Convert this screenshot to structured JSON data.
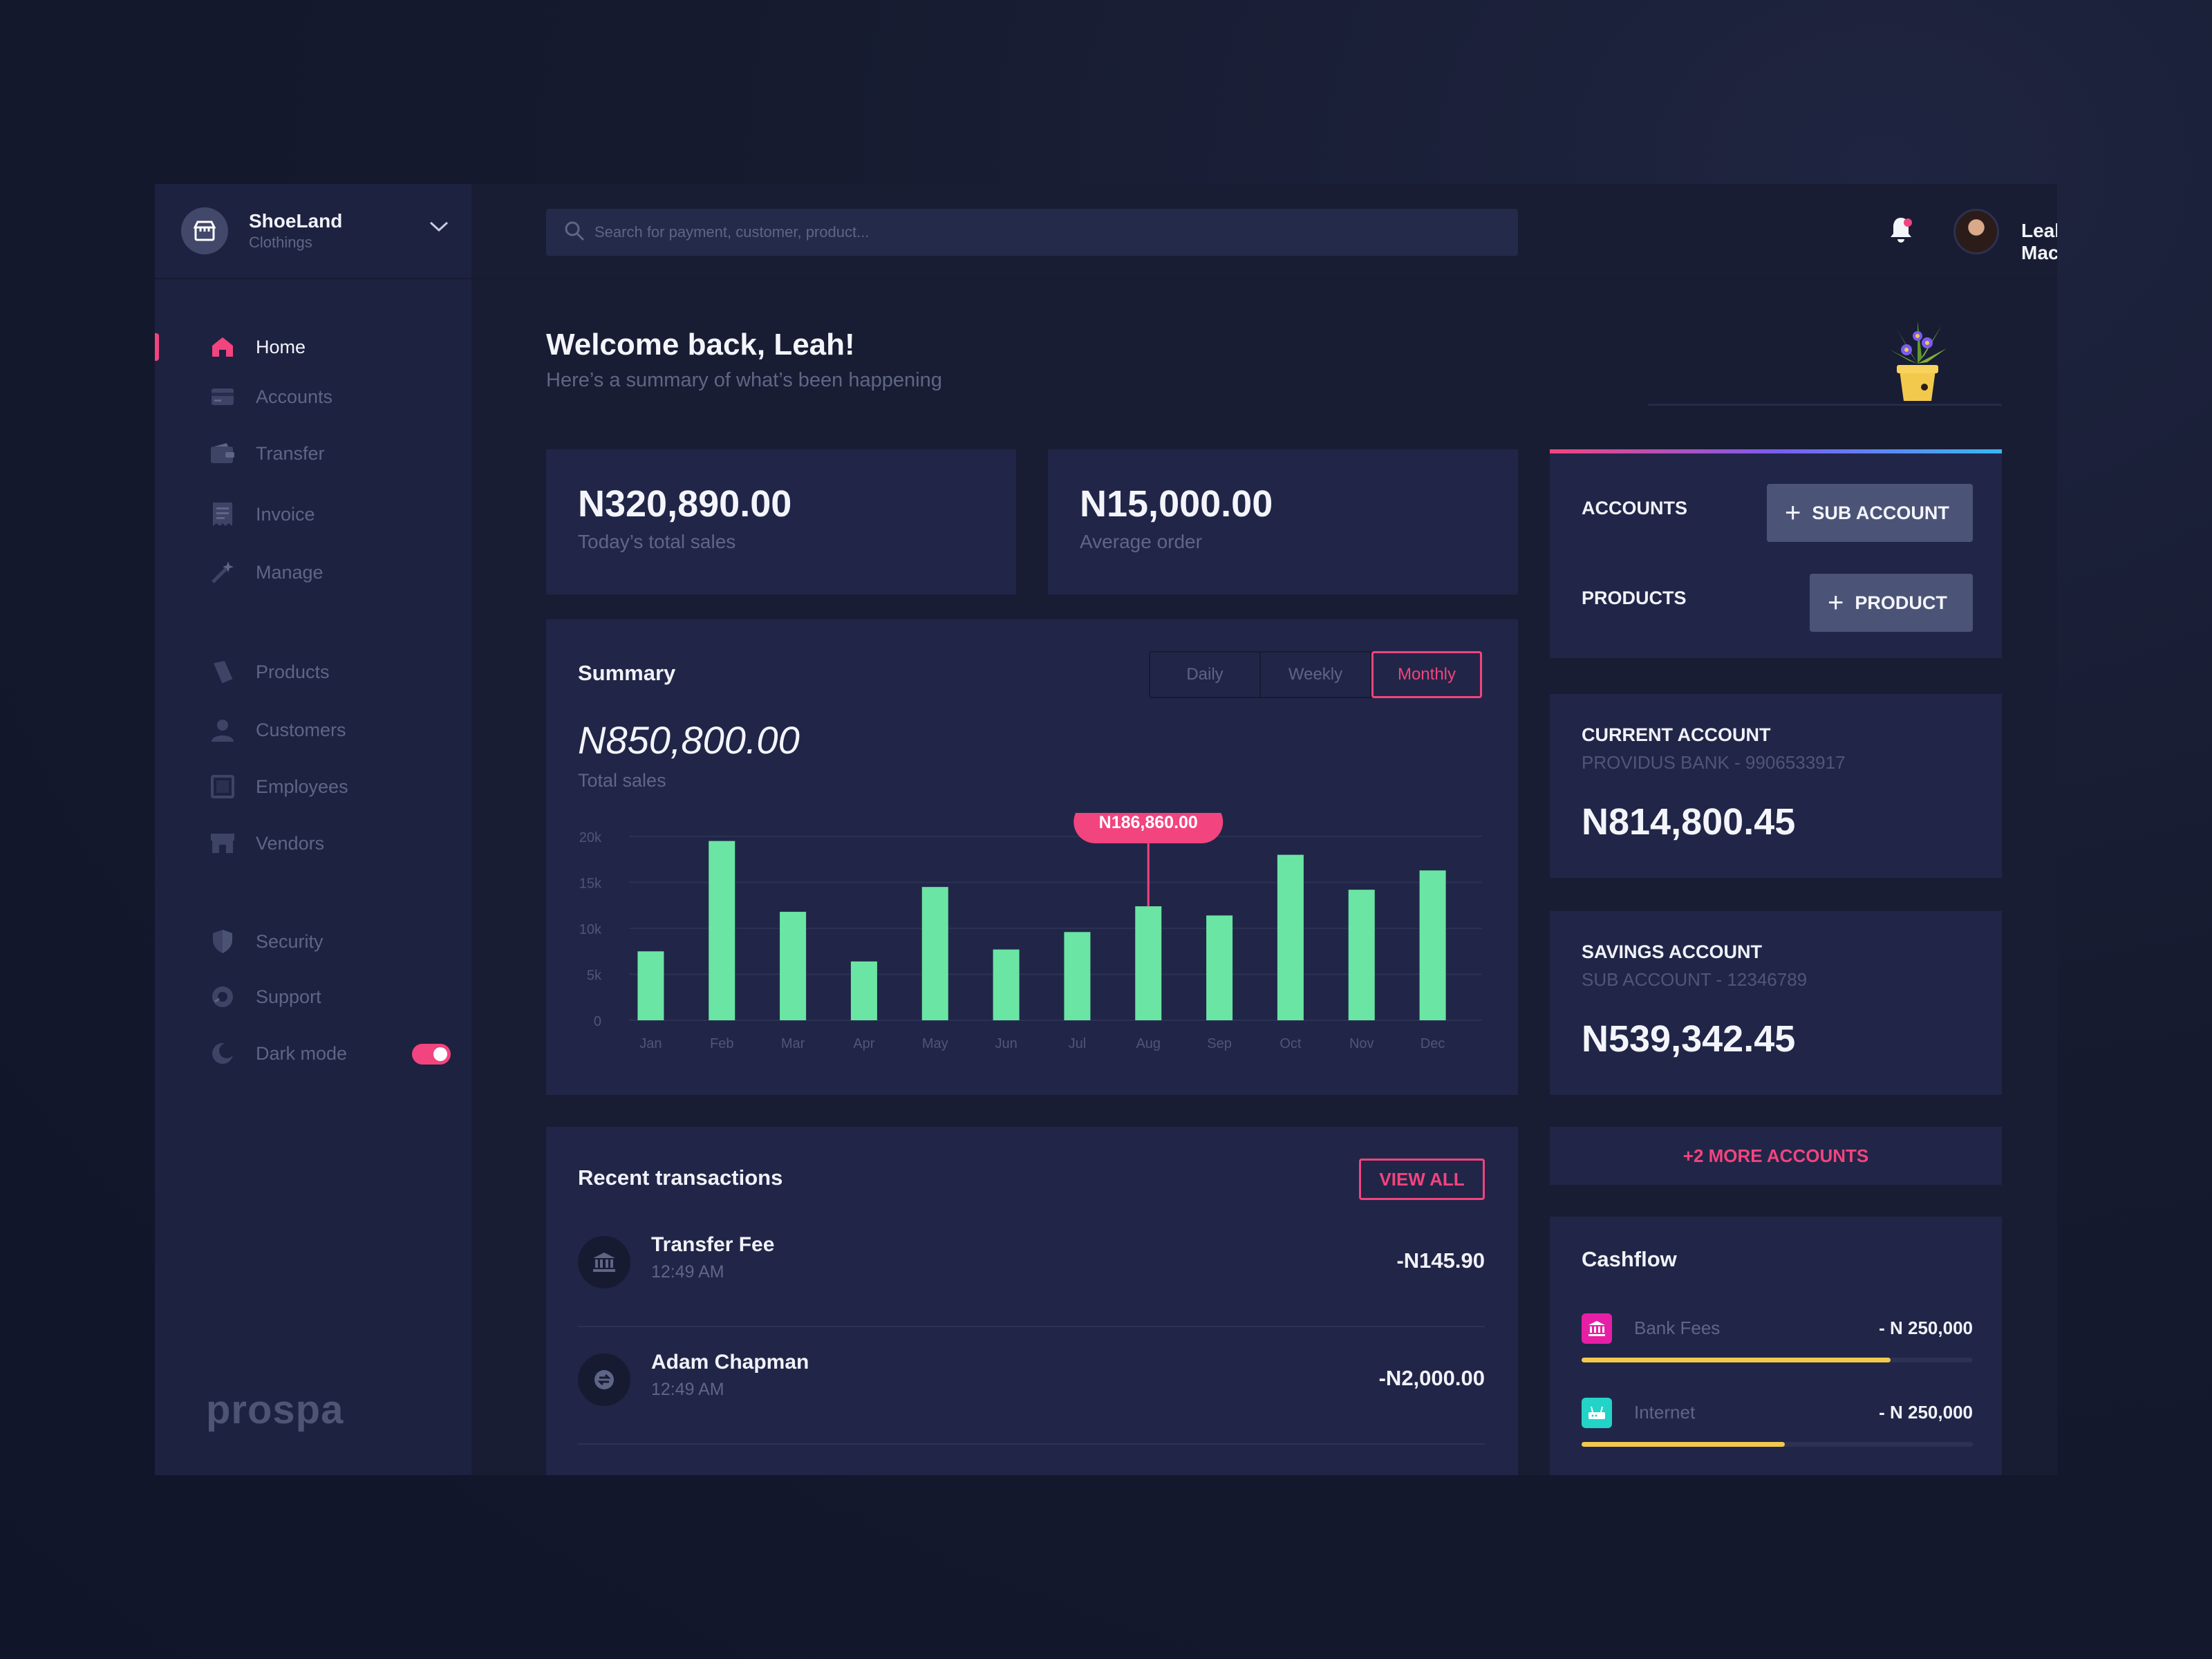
{
  "brand": {
    "name": "ShoeLand",
    "subtitle": "Clothings"
  },
  "search": {
    "placeholder": "Search for payment, customer, product..."
  },
  "user": {
    "name": "Leah Macharia"
  },
  "sidebar": {
    "items": [
      {
        "label": "Home",
        "icon": "home-icon"
      },
      {
        "label": "Accounts",
        "icon": "card-icon"
      },
      {
        "label": "Transfer",
        "icon": "wallet-icon"
      },
      {
        "label": "Invoice",
        "icon": "receipt-icon"
      },
      {
        "label": "Manage",
        "icon": "wand-icon"
      },
      {
        "label": "Products",
        "icon": "tag-icon"
      },
      {
        "label": "Customers",
        "icon": "person-icon"
      },
      {
        "label": "Employees",
        "icon": "badge-icon"
      },
      {
        "label": "Vendors",
        "icon": "store-icon"
      },
      {
        "label": "Security",
        "icon": "shield-icon"
      },
      {
        "label": "Support",
        "icon": "headset-icon"
      },
      {
        "label": "Dark mode",
        "icon": "moon-icon"
      }
    ],
    "dark_mode_on": true,
    "logo": "prospa"
  },
  "welcome": {
    "title": "Welcome back, Leah!",
    "subtitle": "Here’s a summary of what’s been happening"
  },
  "stats": [
    {
      "value": "N320,890.00",
      "label": "Today’s total sales"
    },
    {
      "value": "N15,000.00",
      "label": "Average order"
    }
  ],
  "summary": {
    "title": "Summary",
    "periods": [
      "Daily",
      "Weekly",
      "Monthly"
    ],
    "selected_period": "Monthly",
    "total": "N850,800.00",
    "total_label": "Total sales",
    "tooltip": "N186,860.00"
  },
  "chart_data": {
    "type": "bar",
    "categories": [
      "Jan",
      "Feb",
      "Mar",
      "Apr",
      "May",
      "Jun",
      "Jul",
      "Aug",
      "Sep",
      "Oct",
      "Nov",
      "Dec"
    ],
    "values": [
      7500,
      19500,
      11800,
      6400,
      14500,
      7700,
      9600,
      12400,
      11400,
      18000,
      14200,
      16300
    ],
    "yticks": [
      "0",
      "5k",
      "10k",
      "15k",
      "20k"
    ],
    "ylim": [
      0,
      20000
    ],
    "highlight_index": 7,
    "bar_color": "#6be5a3",
    "grid": true
  },
  "transactions": {
    "title": "Recent transactions",
    "view_all": "VIEW ALL",
    "items": [
      {
        "name": "Transfer Fee",
        "time": "12:49 AM",
        "amount": "-N145.90",
        "icon": "bank-icon"
      },
      {
        "name": "Adam Chapman",
        "time": "12:49 AM",
        "amount": "-N2,000.00",
        "icon": "transfer-icon"
      }
    ]
  },
  "quick": {
    "accounts_label": "ACCOUNTS",
    "sub_account_btn": "SUB ACCOUNT",
    "products_label": "PRODUCTS",
    "product_btn": "PRODUCT"
  },
  "accounts": [
    {
      "title": "CURRENT ACCOUNT",
      "sub": "PROVIDUS BANK - 9906533917",
      "balance": "N814,800.45"
    },
    {
      "title": "SAVINGS ACCOUNT",
      "sub": "SUB ACCOUNT - 12346789",
      "balance": "N539,342.45"
    }
  ],
  "more_accounts": "+2 MORE ACCOUNTS",
  "cashflow": {
    "title": "Cashflow",
    "items": [
      {
        "label": "Bank Fees",
        "amount": "- N 250,000",
        "progress": 0.79,
        "icon_color": "#e61fa6",
        "icon": "bank-icon"
      },
      {
        "label": "Internet",
        "amount": "- N 250,000",
        "progress": 0.52,
        "icon_color": "#23d3c8",
        "icon": "router-icon"
      }
    ]
  },
  "colors": {
    "accent": "#f2447e",
    "bar": "#6be5a3",
    "progress": "#f2c94c"
  }
}
